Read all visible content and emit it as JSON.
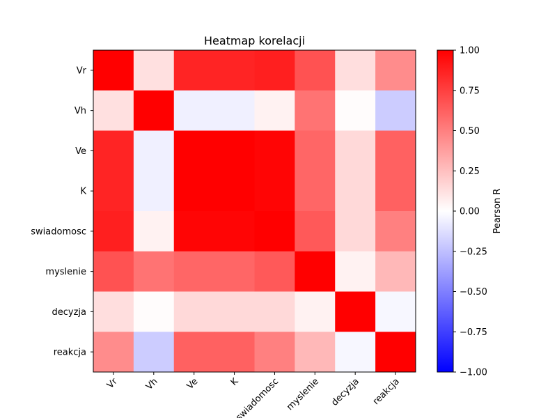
{
  "chart_data": {
    "type": "heatmap",
    "title": "Heatmap korelacji",
    "x_categories": [
      "Vr",
      "Vh",
      "Ve",
      "K",
      "swiadomosc",
      "myslenie",
      "decyzja",
      "reakcja"
    ],
    "y_categories": [
      "Vr",
      "Vh",
      "Ve",
      "K",
      "swiadomosc",
      "myslenie",
      "decyzja",
      "reakcja"
    ],
    "values": [
      [
        1.0,
        0.12,
        0.86,
        0.86,
        0.88,
        0.68,
        0.13,
        0.45
      ],
      [
        0.12,
        1.0,
        -0.06,
        -0.06,
        0.05,
        0.55,
        0.01,
        -0.2
      ],
      [
        0.86,
        -0.06,
        1.0,
        1.0,
        0.98,
        0.6,
        0.15,
        0.62
      ],
      [
        0.86,
        -0.06,
        1.0,
        1.0,
        0.98,
        0.6,
        0.15,
        0.62
      ],
      [
        0.88,
        0.05,
        0.98,
        0.98,
        1.0,
        0.65,
        0.15,
        0.5
      ],
      [
        0.68,
        0.55,
        0.6,
        0.6,
        0.65,
        1.0,
        0.05,
        0.28
      ],
      [
        0.13,
        0.01,
        0.15,
        0.15,
        0.15,
        0.05,
        1.0,
        -0.03
      ],
      [
        0.45,
        -0.2,
        0.62,
        0.62,
        0.5,
        0.28,
        -0.03,
        1.0
      ]
    ],
    "colormap": {
      "low": "#0000ff",
      "mid": "#ffffff",
      "high": "#ff0000"
    },
    "vmin": -1.0,
    "vmax": 1.0,
    "colorbar": {
      "label": "Pearson R",
      "ticks": [
        1.0,
        0.75,
        0.5,
        0.25,
        0.0,
        -0.25,
        -0.5,
        -0.75,
        -1.0
      ],
      "tick_labels": [
        "1.00",
        "0.75",
        "0.50",
        "0.25",
        "0.00",
        "−0.25",
        "−0.50",
        "−0.75",
        "−1.00"
      ]
    },
    "x_tick_rotation": 45
  }
}
